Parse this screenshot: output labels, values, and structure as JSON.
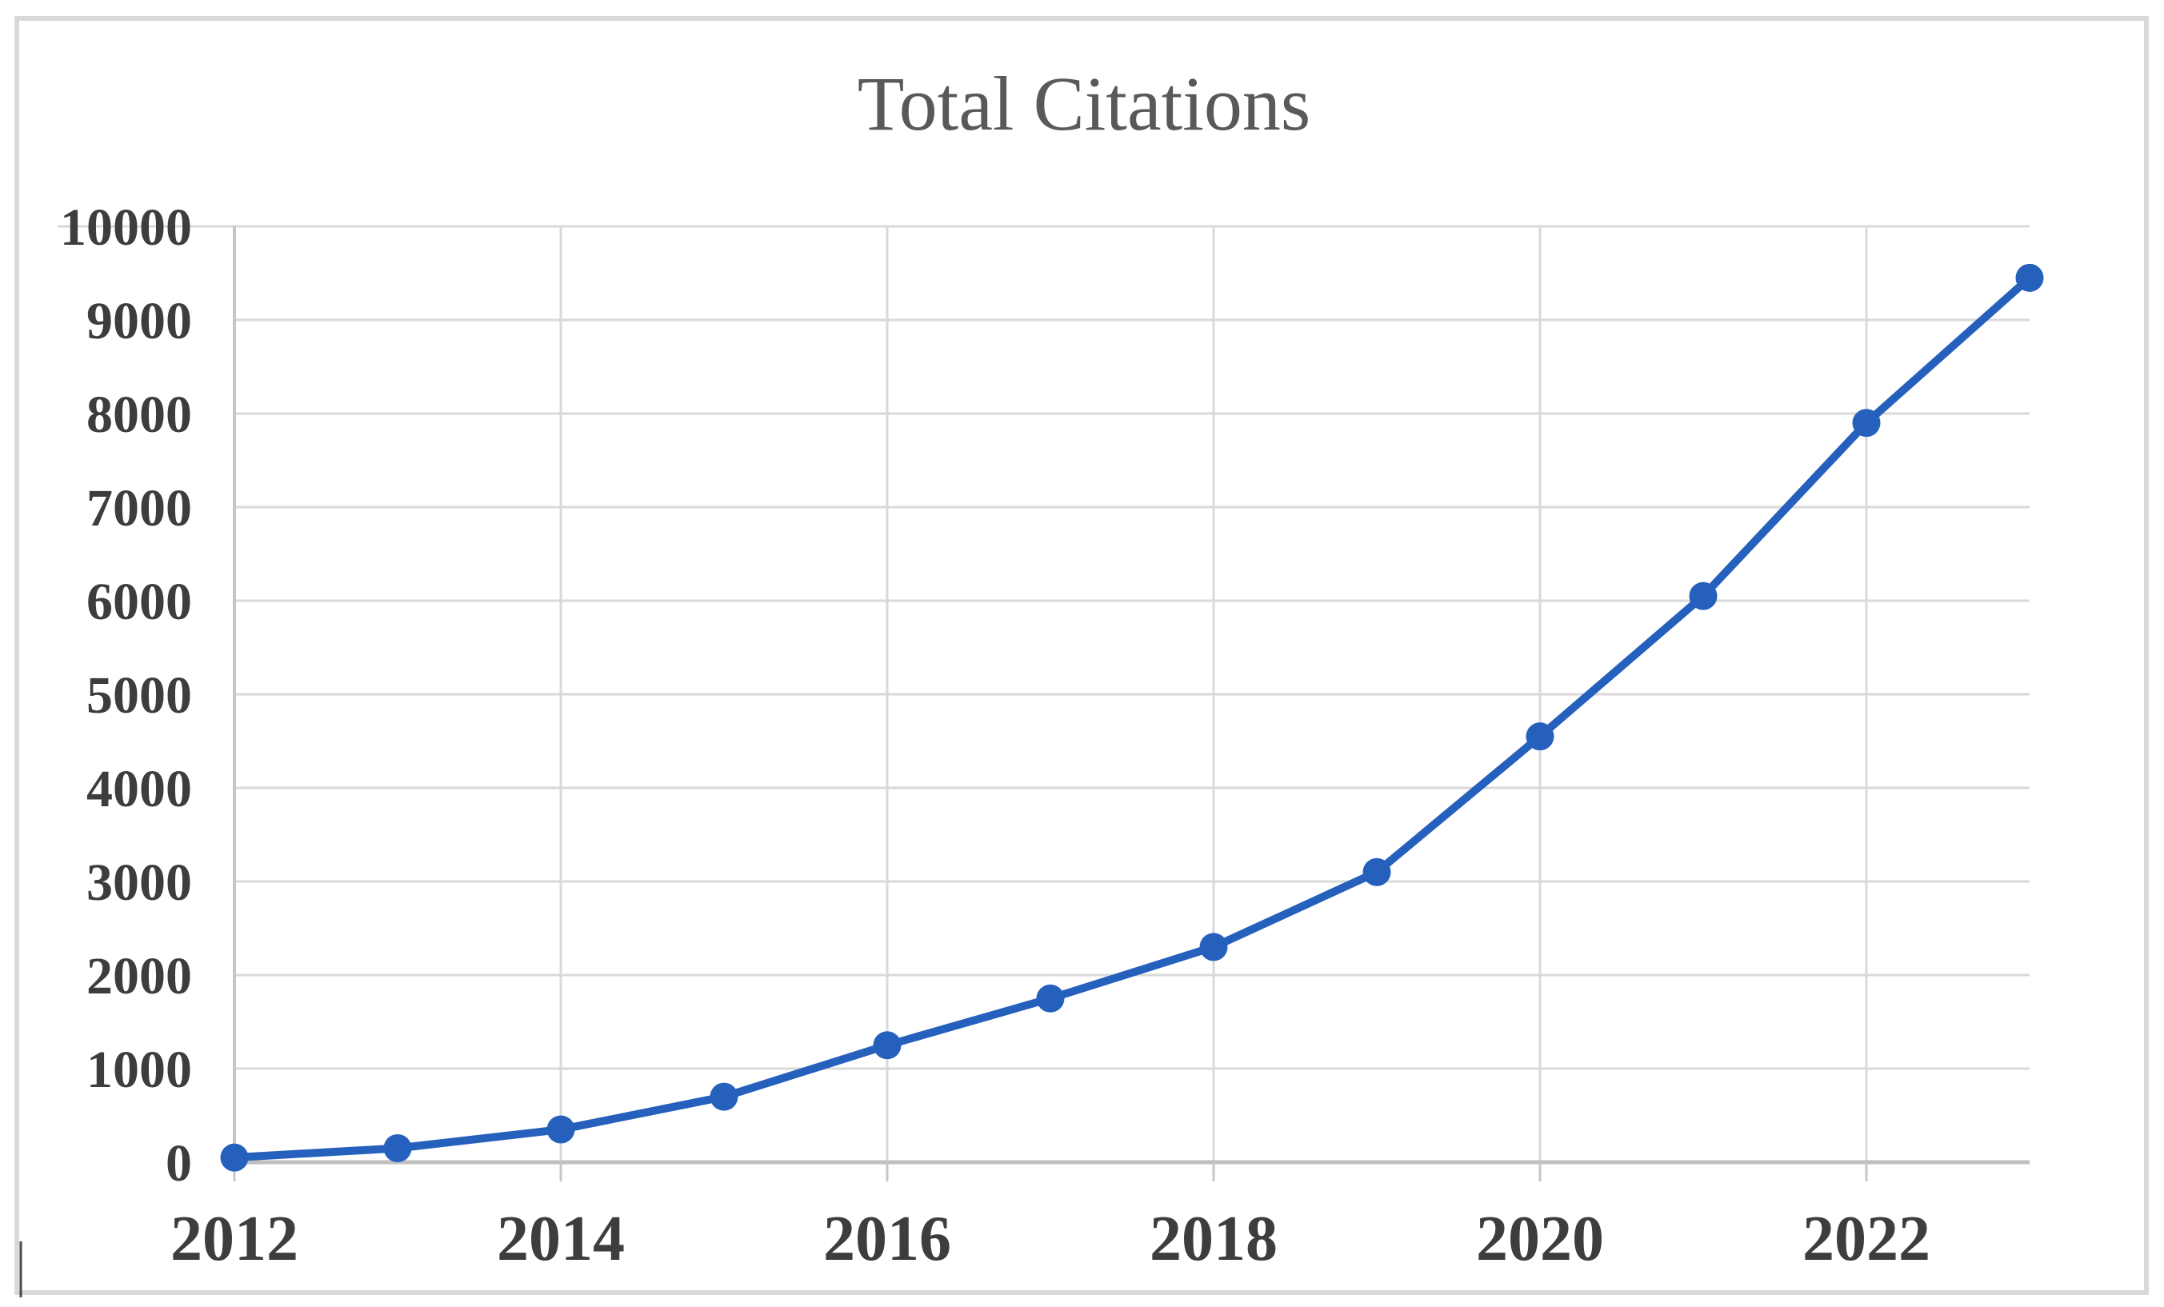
{
  "chart_data": {
    "type": "line",
    "title": "Total Citations",
    "x": [
      2012,
      2013,
      2014,
      2015,
      2016,
      2017,
      2018,
      2019,
      2020,
      2021,
      2022,
      2023
    ],
    "series": [
      {
        "name": "Total Citations",
        "color": "#2560bd",
        "marker": "circle",
        "values": [
          50,
          150,
          350,
          700,
          1250,
          1750,
          2300,
          3100,
          4550,
          6050,
          7900,
          9450
        ]
      }
    ],
    "xlabel": "",
    "ylabel": "",
    "ylim": [
      0,
      10000
    ],
    "y_ticks": [
      0,
      1000,
      2000,
      3000,
      4000,
      5000,
      6000,
      7000,
      8000,
      9000,
      10000
    ],
    "x_tick_labels": [
      "2012",
      "2014",
      "2016",
      "2018",
      "2020",
      "2022"
    ],
    "grid": true,
    "legend_position": "none"
  },
  "style": {
    "series_color": "#2560bd",
    "gridline_color": "#d9d9d9",
    "axis_color": "#bfbfbf",
    "minor_axis_color": "#c6c6c6",
    "tick_label_color": "#3d3d3d",
    "title_color": "#595959",
    "background": "#ffffff",
    "border_color": "#d9d9d9"
  }
}
